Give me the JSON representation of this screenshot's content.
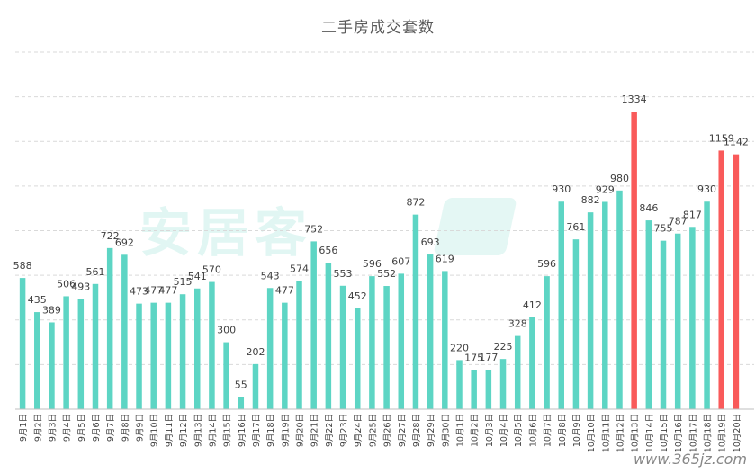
{
  "chart_data": {
    "type": "bar",
    "title": "二手房成交套数",
    "ylim": [
      0,
      1600
    ],
    "grid": true,
    "colors": {
      "normal": "#5dd5c4",
      "highlight": "#f95a5a"
    },
    "categories": [
      "9月1日",
      "9月2日",
      "9月3日",
      "9月4日",
      "9月5日",
      "9月6日",
      "9月7日",
      "9月8日",
      "9月9日",
      "9月10日",
      "9月11日",
      "9月12日",
      "9月13日",
      "9月14日",
      "9月15日",
      "9月16日",
      "9月17日",
      "9月18日",
      "9月19日",
      "9月20日",
      "9月21日",
      "9月22日",
      "9月23日",
      "9月24日",
      "9月25日",
      "9月26日",
      "9月27日",
      "9月28日",
      "9月29日",
      "9月30日",
      "10月1日",
      "10月2日",
      "10月3日",
      "10月4日",
      "10月5日",
      "10月6日",
      "10月7日",
      "10月8日",
      "10月9日",
      "10月10日",
      "10月11日",
      "10月12日",
      "10月13日",
      "10月14日",
      "10月15日",
      "10月16日",
      "10月17日",
      "10月18日",
      "10月19日",
      "10月20日"
    ],
    "values": [
      588,
      435,
      389,
      506,
      493,
      561,
      722,
      692,
      473,
      477,
      477,
      515,
      541,
      570,
      300,
      55,
      202,
      543,
      477,
      574,
      752,
      656,
      553,
      452,
      596,
      552,
      607,
      872,
      693,
      619,
      220,
      175,
      177,
      225,
      328,
      412,
      596,
      930,
      761,
      882,
      929,
      980,
      1334,
      846,
      755,
      787,
      817,
      930,
      1159,
      1142
    ],
    "highlight_indices": [
      42,
      48,
      49
    ]
  },
  "watermark": {
    "text": "安居客",
    "source": "www.365jz.com"
  }
}
